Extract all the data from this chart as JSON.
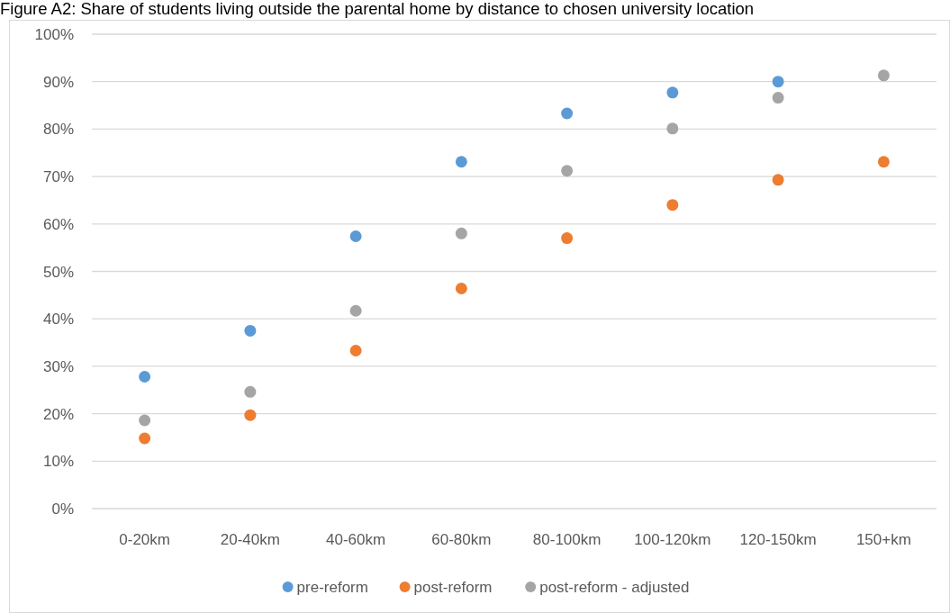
{
  "chart_data": {
    "type": "scatter",
    "title": "Figure A2: Share of students living outside the parental home by distance to chosen university location",
    "categories": [
      "0-20km",
      "20-40km",
      "40-60km",
      "60-80km",
      "80-100km",
      "100-120km",
      "120-150km",
      "150+km"
    ],
    "series": [
      {
        "name": "pre-reform",
        "color": "#5b9bd5",
        "values": [
          27.8,
          37.5,
          57.4,
          73.1,
          83.3,
          87.7,
          90.0,
          null
        ]
      },
      {
        "name": "post-reform",
        "color": "#ed7d31",
        "values": [
          14.8,
          19.7,
          33.3,
          46.4,
          57.0,
          64.0,
          69.3,
          73.1
        ]
      },
      {
        "name": "post-reform - adjusted",
        "color": "#a5a5a5",
        "values": [
          18.6,
          24.6,
          41.7,
          58.0,
          71.2,
          80.1,
          86.6,
          91.3
        ]
      }
    ],
    "ylim": [
      0,
      100
    ],
    "yticks": [
      {
        "value": 0,
        "label": "0%"
      },
      {
        "value": 10,
        "label": "10%"
      },
      {
        "value": 20,
        "label": "20%"
      },
      {
        "value": 30,
        "label": "30%"
      },
      {
        "value": 40,
        "label": "40%"
      },
      {
        "value": 50,
        "label": "50%"
      },
      {
        "value": 60,
        "label": "60%"
      },
      {
        "value": 70,
        "label": "70%"
      },
      {
        "value": 80,
        "label": "80%"
      },
      {
        "value": 90,
        "label": "90%"
      },
      {
        "value": 100,
        "label": "100%"
      }
    ],
    "grid": "y",
    "legend": "bottom",
    "marker": "circle"
  }
}
